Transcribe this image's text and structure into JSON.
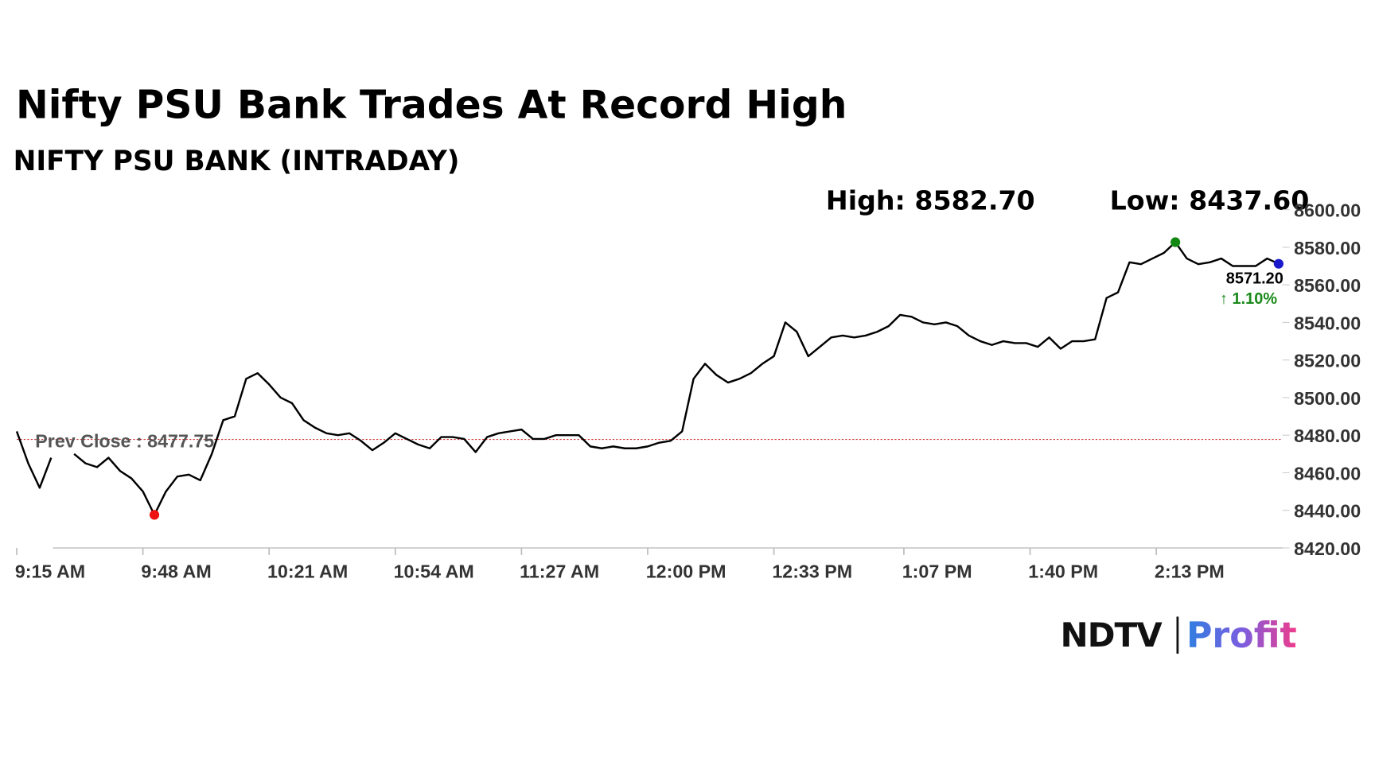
{
  "chart_data": {
    "type": "line",
    "title": "Nifty PSU Bank Trades At Record High",
    "subtitle": "NIFTY PSU BANK (INTRADAY)",
    "high": {
      "label": "High: 8582.70",
      "value": 8582.7
    },
    "low": {
      "label": "Low: 8437.60",
      "value": 8437.6
    },
    "prev_close": {
      "label": "Prev Close : 8477.75",
      "value": 8477.75
    },
    "last_price": {
      "label": "8571.20",
      "value": 8571.2
    },
    "change_label": "↑ 1.10%",
    "x": [
      "9:15 AM",
      "9:18 AM",
      "9:21 AM",
      "9:24 AM",
      "9:27 AM",
      "9:30 AM",
      "9:33 AM",
      "9:36 AM",
      "9:39 AM",
      "9:42 AM",
      "9:45 AM",
      "9:48 AM",
      "9:51 AM",
      "9:54 AM",
      "9:57 AM",
      "10:00 AM",
      "10:03 AM",
      "10:06 AM",
      "10:09 AM",
      "10:12 AM",
      "10:15 AM",
      "10:18 AM",
      "10:21 AM",
      "10:24 AM",
      "10:27 AM",
      "10:30 AM",
      "10:33 AM",
      "10:36 AM",
      "10:39 AM",
      "10:42 AM",
      "10:45 AM",
      "10:48 AM",
      "10:51 AM",
      "10:54 AM",
      "10:57 AM",
      "11:00 AM",
      "11:03 AM",
      "11:06 AM",
      "11:09 AM",
      "11:12 AM",
      "11:15 AM",
      "11:18 AM",
      "11:21 AM",
      "11:24 AM",
      "11:27 AM",
      "11:30 AM",
      "11:33 AM",
      "11:36 AM",
      "11:39 AM",
      "11:42 AM",
      "11:45 AM",
      "11:48 AM",
      "11:51 AM",
      "11:54 AM",
      "11:57 AM",
      "12:00 PM",
      "12:03 PM",
      "12:06 PM",
      "12:09 PM",
      "12:12 PM",
      "12:15 PM",
      "12:18 PM",
      "12:21 PM",
      "12:24 PM",
      "12:27 PM",
      "12:30 PM",
      "12:33 PM",
      "12:36 PM",
      "12:39 PM",
      "12:42 PM",
      "12:45 PM",
      "12:48 PM",
      "12:51 PM",
      "12:54 PM",
      "12:57 PM",
      "1:00 PM",
      "1:03 PM",
      "1:06 PM",
      "1:09 PM",
      "1:12 PM",
      "1:15 PM",
      "1:18 PM",
      "1:21 PM",
      "1:24 PM",
      "1:27 PM",
      "1:30 PM",
      "1:33 PM",
      "1:36 PM",
      "1:39 PM",
      "1:42 PM",
      "1:45 PM",
      "1:48 PM",
      "1:51 PM",
      "1:54 PM",
      "1:57 PM",
      "2:00 PM",
      "2:03 PM",
      "2:06 PM",
      "2:09 PM",
      "2:12 PM",
      "2:15 PM",
      "2:18 PM",
      "2:21 PM",
      "2:24 PM",
      "2:27 PM",
      "2:30 PM",
      "2:33 PM",
      "2:36 PM",
      "2:39 PM",
      "2:42 PM",
      "2:45 PM"
    ],
    "series": [
      {
        "color": "#000000",
        "values": [
          8482,
          8465,
          8452,
          8468,
          null,
          8470,
          8465,
          8463,
          8468,
          8461,
          8457,
          8450,
          8437.6,
          8450,
          8458,
          8459,
          8456,
          8470,
          8488,
          8490,
          8510,
          8513,
          8507,
          8500,
          8497,
          8488,
          8484,
          8481,
          8480,
          8481,
          8477,
          8472,
          8476,
          8481,
          8478,
          8475,
          8473,
          8479,
          8479,
          8478,
          8471,
          8479,
          8481,
          8482,
          8483,
          8478,
          8478,
          8480,
          8480,
          8480,
          8474,
          8473,
          8474,
          8473,
          8473,
          8474,
          8476,
          8477,
          8482,
          8510,
          8518,
          8512,
          8508,
          8510,
          8513,
          8518,
          8522,
          8540,
          8535,
          8522,
          8527,
          8532,
          8533,
          8532,
          8533,
          8535,
          8538,
          8544,
          8543,
          8540,
          8539,
          8540,
          8538,
          8533,
          8530,
          8528,
          8530,
          8529,
          8529,
          8527,
          8532,
          8526,
          8530,
          8530,
          8531,
          8553,
          8556,
          8572,
          8571,
          8574,
          8577,
          8582.7,
          8574,
          8571,
          8572,
          8574,
          8570,
          8570,
          8570,
          8574,
          8571.2
        ]
      }
    ],
    "xlim": [
      "9:15 AM",
      "2:46 PM"
    ],
    "xticks": [
      "9:15 AM",
      "9:48 AM",
      "10:21 AM",
      "10:54 AM",
      "11:27 AM",
      "12:00 PM",
      "12:33 PM",
      "1:07 PM",
      "1:40 PM",
      "2:13 PM"
    ],
    "ylim": [
      8420,
      8600
    ],
    "yticks": [
      {
        "value": 8420,
        "label": "8420.00"
      },
      {
        "value": 8440,
        "label": "8440.00"
      },
      {
        "value": 8460,
        "label": "8460.00"
      },
      {
        "value": 8480,
        "label": "8480.00"
      },
      {
        "value": 8500,
        "label": "8500.00"
      },
      {
        "value": 8520,
        "label": "8520.00"
      },
      {
        "value": 8540,
        "label": "8540.00"
      },
      {
        "value": 8560,
        "label": "8560.00"
      },
      {
        "value": 8580,
        "label": "8580.00"
      },
      {
        "value": 8600,
        "label": "8600.00"
      }
    ],
    "high_color": "#118811",
    "low_color": "#ee1111",
    "last_color": "#1a1acc",
    "prev_close_color": "#cc3333",
    "logo": {
      "left": "NDTV",
      "right": "Profit"
    }
  }
}
